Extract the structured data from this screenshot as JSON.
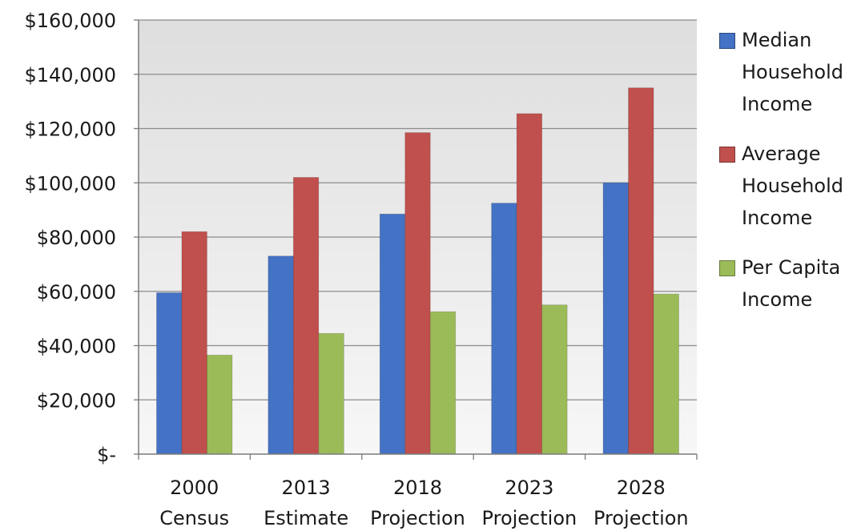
{
  "chart_data": {
    "type": "bar",
    "categories": [
      [
        "2000",
        "Census"
      ],
      [
        "2013",
        "Estimate"
      ],
      [
        "2018",
        "Projection"
      ],
      [
        "2023",
        "Projection"
      ],
      [
        "2028",
        "Projection"
      ]
    ],
    "series": [
      {
        "name": "Median Household Income",
        "color": "#4472C4",
        "values": [
          59500,
          73000,
          88500,
          92500,
          100000
        ]
      },
      {
        "name": "Average Household Income",
        "color": "#C0504D",
        "values": [
          82000,
          102000,
          118500,
          125500,
          135000
        ]
      },
      {
        "name": "Per Capita Income",
        "color": "#9BBB59",
        "values": [
          36500,
          44500,
          52500,
          55000,
          59000
        ]
      }
    ],
    "yticks": [
      {
        "value": 0,
        "label": "$-"
      },
      {
        "value": 20000,
        "label": "$20,000"
      },
      {
        "value": 40000,
        "label": "$40,000"
      },
      {
        "value": 60000,
        "label": "$60,000"
      },
      {
        "value": 80000,
        "label": "$80,000"
      },
      {
        "value": 100000,
        "label": "$100,000"
      },
      {
        "value": 120000,
        "label": "$120,000"
      },
      {
        "value": 140000,
        "label": "$140,000"
      },
      {
        "value": 160000,
        "label": "$160,000"
      }
    ],
    "ylim": [
      0,
      160000
    ],
    "grid": true,
    "legend_position": "right",
    "legend_lines": [
      [
        "Median",
        "Household",
        "Income"
      ],
      [
        "Average",
        "Household",
        "Income"
      ],
      [
        "Per Capita",
        "Income"
      ]
    ],
    "title": "",
    "xlabel": "",
    "ylabel": ""
  }
}
